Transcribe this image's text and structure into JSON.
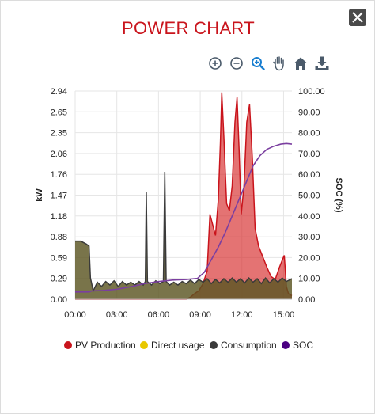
{
  "window": {
    "title": "POWER CHART"
  },
  "toolbar": {
    "tools": [
      {
        "name": "zoom-in-icon"
      },
      {
        "name": "zoom-out-icon"
      },
      {
        "name": "zoom-select-icon"
      },
      {
        "name": "pan-hand-icon"
      },
      {
        "name": "reset-home-icon"
      },
      {
        "name": "download-icon"
      }
    ]
  },
  "colors": {
    "title": "#c9141c",
    "pv": "#c9141c",
    "direct": "#e8c800",
    "consumption": "#3a3a3a",
    "soc": "#6a1b9a"
  },
  "chart_data": {
    "type": "area",
    "ylabel": "kW",
    "y2label": "SOC (%)",
    "y_ticks": [
      "0.00",
      "0.29",
      "0.59",
      "0.88",
      "1.18",
      "1.47",
      "1.76",
      "2.06",
      "2.35",
      "2.65",
      "2.94"
    ],
    "y2_ticks": [
      "0.00",
      "10.00",
      "20.00",
      "30.00",
      "40.00",
      "50.00",
      "60.00",
      "70.00",
      "80.00",
      "90.00",
      "100.00"
    ],
    "x_ticks": [
      "00:00",
      "03:00",
      "06:00",
      "09:00",
      "12:00",
      "15:00"
    ],
    "ylim": [
      0,
      2.94
    ],
    "y2lim": [
      0,
      100
    ],
    "xlim_hours": [
      0,
      15.6
    ],
    "legend_position": "bottom",
    "series": [
      {
        "name": "PV Production",
        "axis": "left",
        "points": [
          [
            0,
            0
          ],
          [
            8.0,
            0
          ],
          [
            8.3,
            0.03
          ],
          [
            8.6,
            0.08
          ],
          [
            8.9,
            0.12
          ],
          [
            9.2,
            0.22
          ],
          [
            9.5,
            0.4
          ],
          [
            9.7,
            1.2
          ],
          [
            9.9,
            1.05
          ],
          [
            10.1,
            0.9
          ],
          [
            10.3,
            1.4
          ],
          [
            10.45,
            2.2
          ],
          [
            10.55,
            2.92
          ],
          [
            10.7,
            2.3
          ],
          [
            10.9,
            1.35
          ],
          [
            11.1,
            1.25
          ],
          [
            11.3,
            1.6
          ],
          [
            11.5,
            2.5
          ],
          [
            11.65,
            2.85
          ],
          [
            11.8,
            2.1
          ],
          [
            11.95,
            1.2
          ],
          [
            12.15,
            1.6
          ],
          [
            12.35,
            2.5
          ],
          [
            12.55,
            2.75
          ],
          [
            12.75,
            2.0
          ],
          [
            12.95,
            1.0
          ],
          [
            13.2,
            0.75
          ],
          [
            13.5,
            0.6
          ],
          [
            13.8,
            0.45
          ],
          [
            14.1,
            0.32
          ],
          [
            14.4,
            0.28
          ],
          [
            14.7,
            0.45
          ],
          [
            14.9,
            0.55
          ],
          [
            15.05,
            0.62
          ],
          [
            15.2,
            0.18
          ],
          [
            15.35,
            0.08
          ],
          [
            15.6,
            0.05
          ]
        ]
      },
      {
        "name": "Direct usage",
        "axis": "left",
        "points": []
      },
      {
        "name": "Consumption",
        "axis": "left",
        "points": [
          [
            0,
            0.82
          ],
          [
            0.4,
            0.82
          ],
          [
            0.8,
            0.78
          ],
          [
            1.0,
            0.75
          ],
          [
            1.1,
            0.3
          ],
          [
            1.3,
            0.12
          ],
          [
            1.6,
            0.24
          ],
          [
            1.9,
            0.18
          ],
          [
            2.2,
            0.25
          ],
          [
            2.5,
            0.2
          ],
          [
            2.8,
            0.26
          ],
          [
            3.1,
            0.18
          ],
          [
            3.4,
            0.25
          ],
          [
            3.7,
            0.2
          ],
          [
            4.0,
            0.24
          ],
          [
            4.3,
            0.2
          ],
          [
            4.6,
            0.25
          ],
          [
            4.9,
            0.2
          ],
          [
            5.05,
            0.25
          ],
          [
            5.12,
            1.52
          ],
          [
            5.2,
            0.25
          ],
          [
            5.5,
            0.2
          ],
          [
            5.8,
            0.26
          ],
          [
            6.1,
            0.22
          ],
          [
            6.35,
            0.25
          ],
          [
            6.45,
            1.8
          ],
          [
            6.55,
            0.25
          ],
          [
            6.8,
            0.2
          ],
          [
            7.1,
            0.24
          ],
          [
            7.4,
            0.2
          ],
          [
            7.7,
            0.25
          ],
          [
            8.0,
            0.22
          ],
          [
            8.3,
            0.27
          ],
          [
            8.6,
            0.22
          ],
          [
            8.9,
            0.28
          ],
          [
            9.2,
            0.24
          ],
          [
            9.5,
            0.29
          ],
          [
            9.8,
            0.22
          ],
          [
            10.1,
            0.28
          ],
          [
            10.4,
            0.23
          ],
          [
            10.7,
            0.29
          ],
          [
            11.0,
            0.24
          ],
          [
            11.3,
            0.3
          ],
          [
            11.6,
            0.24
          ],
          [
            11.9,
            0.29
          ],
          [
            12.2,
            0.23
          ],
          [
            12.5,
            0.3
          ],
          [
            12.8,
            0.24
          ],
          [
            13.1,
            0.29
          ],
          [
            13.4,
            0.22
          ],
          [
            13.7,
            0.3
          ],
          [
            14.0,
            0.23
          ],
          [
            14.3,
            0.29
          ],
          [
            14.6,
            0.24
          ],
          [
            14.9,
            0.3
          ],
          [
            15.2,
            0.25
          ],
          [
            15.6,
            0.29
          ]
        ]
      },
      {
        "name": "SOC",
        "axis": "right",
        "points": [
          [
            0,
            3.5
          ],
          [
            1.0,
            3.5
          ],
          [
            1.2,
            4.0
          ],
          [
            2.0,
            4.2
          ],
          [
            3.0,
            4.8
          ],
          [
            4.0,
            6.0
          ],
          [
            5.0,
            7.5
          ],
          [
            6.0,
            8.5
          ],
          [
            7.0,
            9.2
          ],
          [
            8.0,
            9.5
          ],
          [
            8.8,
            10.0
          ],
          [
            9.3,
            13.0
          ],
          [
            9.8,
            19.0
          ],
          [
            10.3,
            25.0
          ],
          [
            10.8,
            32.0
          ],
          [
            11.3,
            40.0
          ],
          [
            11.8,
            48.0
          ],
          [
            12.3,
            56.0
          ],
          [
            12.8,
            64.0
          ],
          [
            13.3,
            69.0
          ],
          [
            13.8,
            72.0
          ],
          [
            14.3,
            73.5
          ],
          [
            14.8,
            74.5
          ],
          [
            15.2,
            74.8
          ],
          [
            15.6,
            74.5
          ]
        ]
      }
    ]
  },
  "legend": [
    {
      "label": "PV Production",
      "color": "#c9141c"
    },
    {
      "label": "Direct usage",
      "color": "#e8c800"
    },
    {
      "label": "Consumption",
      "color": "#3a3a3a"
    },
    {
      "label": "SOC",
      "color": "#4b0082"
    }
  ]
}
